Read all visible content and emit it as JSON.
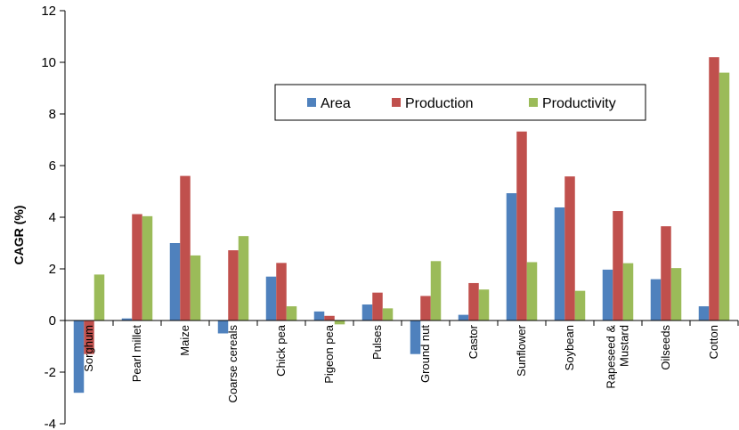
{
  "chart_data": {
    "type": "bar",
    "title": "",
    "xlabel": "",
    "ylabel": "CAGR (%)",
    "ylim": [
      -4,
      12
    ],
    "yticks": [
      -4,
      -2,
      0,
      2,
      4,
      6,
      8,
      10,
      12
    ],
    "ytick_labels": [
      "-4",
      "-2",
      "0",
      "2",
      "4",
      "6",
      "8",
      "10",
      "12"
    ],
    "grid": false,
    "legend_position": "top-right",
    "categories": [
      [
        "Sorghum"
      ],
      [
        "Pearl millet"
      ],
      [
        "Maize"
      ],
      [
        "Coarse cereals"
      ],
      [
        "Chick pea"
      ],
      [
        "Pigeon pea"
      ],
      [
        "Pulses"
      ],
      [
        "Ground nut"
      ],
      [
        "Castor"
      ],
      [
        "Sunflower"
      ],
      [
        "Soybean"
      ],
      [
        "Rapeseed &",
        "Mustard"
      ],
      [
        "Oilseeds"
      ],
      [
        "Cotton"
      ]
    ],
    "series": [
      {
        "name": "Area",
        "color": "#4f81bd",
        "values": [
          -2.8,
          0.08,
          3.0,
          -0.5,
          1.7,
          0.35,
          0.62,
          -1.3,
          0.22,
          4.93,
          4.38,
          1.97,
          1.6,
          0.55
        ]
      },
      {
        "name": "Production",
        "color": "#c0504d",
        "values": [
          -1.3,
          4.12,
          5.6,
          2.72,
          2.23,
          0.18,
          1.08,
          0.95,
          1.45,
          7.32,
          5.58,
          4.24,
          3.65,
          10.2
        ]
      },
      {
        "name": "Productivity",
        "color": "#9bbb59",
        "values": [
          1.78,
          4.04,
          2.52,
          3.27,
          0.55,
          -0.15,
          0.47,
          2.3,
          1.2,
          2.26,
          1.15,
          2.22,
          2.03,
          9.6
        ]
      }
    ]
  }
}
